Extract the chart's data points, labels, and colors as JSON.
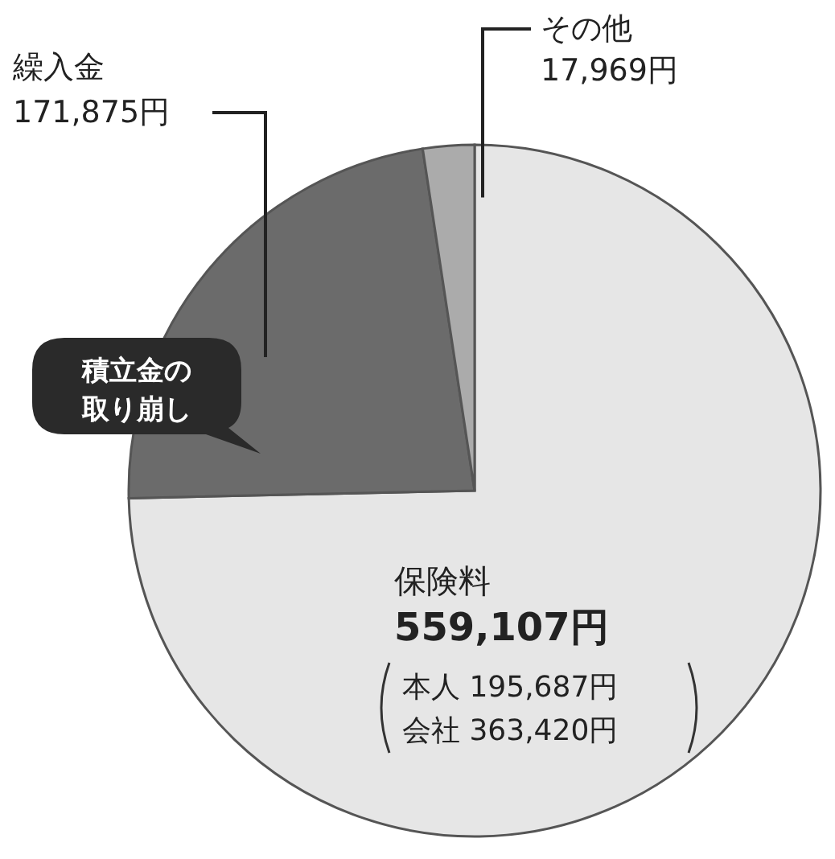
{
  "chart_data": {
    "type": "pie",
    "categories": [
      "保険料",
      "繰入金",
      "その他"
    ],
    "values": [
      559107,
      171875,
      17969
    ],
    "value_labels": [
      "559,107円",
      "171,875円",
      "17,969円"
    ],
    "colors": [
      "#e6e6e6",
      "#6b6b6b",
      "#ababab"
    ],
    "annotations": [
      "積立金の取り崩し",
      "本人 195,687円",
      "会社 363,420円"
    ]
  }
}
